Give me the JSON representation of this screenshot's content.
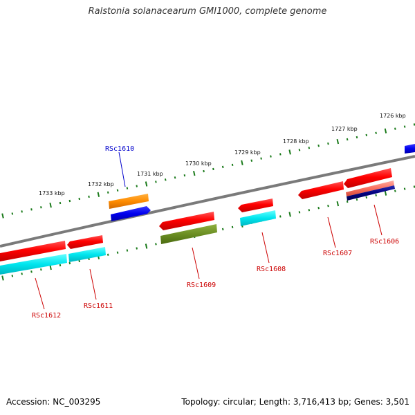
{
  "title": "Ralstonia solanacearum GMI1000, complete genome",
  "footer": {
    "accession": "Accession: NC_003295",
    "topology": "Topology: circular; Length: 3,716,413 bp; Genes: 3,501"
  },
  "scale_ticks": [
    "1726 kbp",
    "1727 kbp",
    "1728 kbp",
    "1729 kbp",
    "1730 kbp",
    "1731 kbp",
    "1732 kbp",
    "1733 kbp"
  ],
  "genes": [
    {
      "name": "RSc1606",
      "color": "#cc0000"
    },
    {
      "name": "RSc1607",
      "color": "#cc0000"
    },
    {
      "name": "RSc1608",
      "color": "#cc0000"
    },
    {
      "name": "RSc1609",
      "color": "#cc0000"
    },
    {
      "name": "RSc1610",
      "color": "#0000cc"
    },
    {
      "name": "RSc1611",
      "color": "#cc0000"
    },
    {
      "name": "RSc1612",
      "color": "#cc0000"
    }
  ],
  "colors": {
    "backbone": "#7a7a7a",
    "tick": "#1a7a1a",
    "forward_gene": "#ff1a1a",
    "cds_cyan": "#00e5ee",
    "cds_blue": "#0a0aee",
    "cds_orange": "#ff8c00",
    "cds_olive": "#6b8e23",
    "cds_navy": "#000080",
    "cds_salmon": "#fa6f5f"
  }
}
